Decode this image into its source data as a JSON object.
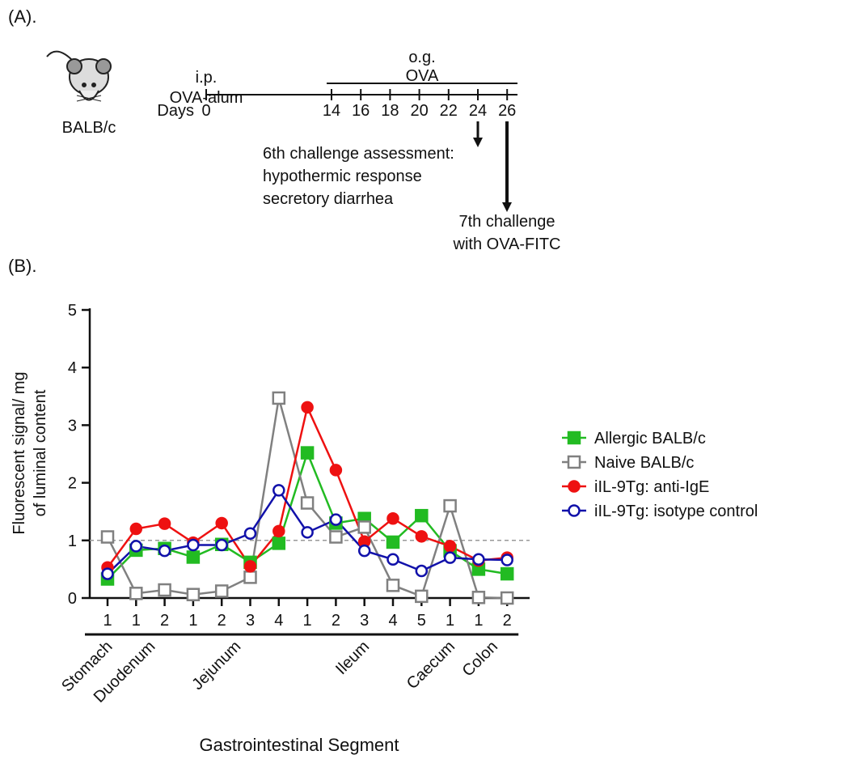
{
  "panel_a": {
    "label": "(A).",
    "strain": "BALB/c",
    "sensitization": [
      "i.p.",
      "OVA-alum"
    ],
    "challenge": [
      "o.g.",
      "OVA"
    ],
    "days_label": "Days",
    "days": [
      0,
      14,
      16,
      18,
      20,
      22,
      24,
      26
    ],
    "assessment": [
      "6th challenge assessment:",
      "hypothermic response",
      "secretory diarrhea"
    ],
    "final_challenge": [
      "7th challenge",
      "with OVA-FITC"
    ]
  },
  "panel_b_label": "(B).",
  "chart_data": {
    "type": "line",
    "ylabel": [
      "Fluorescent signal/ mg",
      "of luminal content"
    ],
    "xlabel": "Gastrointestinal Segment",
    "groups": [
      {
        "label": "Stomach",
        "categories": [
          "1"
        ]
      },
      {
        "label": "Duodenum",
        "categories": [
          "1",
          "2"
        ]
      },
      {
        "label": "Jejunum",
        "categories": [
          "1",
          "2",
          "3",
          "4"
        ]
      },
      {
        "label": "Ileum",
        "categories": [
          "1",
          "2",
          "3",
          "4",
          "5"
        ]
      },
      {
        "label": "Caecum",
        "categories": [
          "1"
        ]
      },
      {
        "label": "Colon",
        "categories": [
          "1",
          "2"
        ]
      }
    ],
    "ylim": [
      0,
      5
    ],
    "yticks": [
      0,
      1,
      2,
      3,
      4,
      5
    ],
    "reference_line": 1,
    "series": [
      {
        "name": "Allergic BALB/c",
        "color": "#22bb22",
        "marker": "square",
        "filled": true,
        "values": [
          0.33,
          0.83,
          0.86,
          0.71,
          0.93,
          0.62,
          0.95,
          2.52,
          1.3,
          1.38,
          0.97,
          1.43,
          0.82,
          0.5,
          0.42
        ]
      },
      {
        "name": "Naive BALB/c",
        "color": "#808080",
        "marker": "square",
        "filled": false,
        "values": [
          1.06,
          0.08,
          0.14,
          0.06,
          0.12,
          0.36,
          3.47,
          1.65,
          1.06,
          1.23,
          0.22,
          0.03,
          1.6,
          0.01,
          0.0
        ]
      },
      {
        "name": "iIL-9Tg: anti-IgE",
        "color": "#ee1111",
        "marker": "circle",
        "filled": true,
        "values": [
          0.53,
          1.2,
          1.29,
          0.96,
          1.3,
          0.55,
          1.16,
          3.31,
          2.22,
          0.98,
          1.38,
          1.07,
          0.9,
          0.65,
          0.7
        ]
      },
      {
        "name": "iIL-9Tg: isotype control",
        "color": "#1111aa",
        "marker": "circle",
        "filled": false,
        "values": [
          0.42,
          0.9,
          0.82,
          0.92,
          0.92,
          1.12,
          1.87,
          1.14,
          1.36,
          0.82,
          0.67,
          0.47,
          0.7,
          0.67,
          0.66
        ]
      }
    ]
  }
}
